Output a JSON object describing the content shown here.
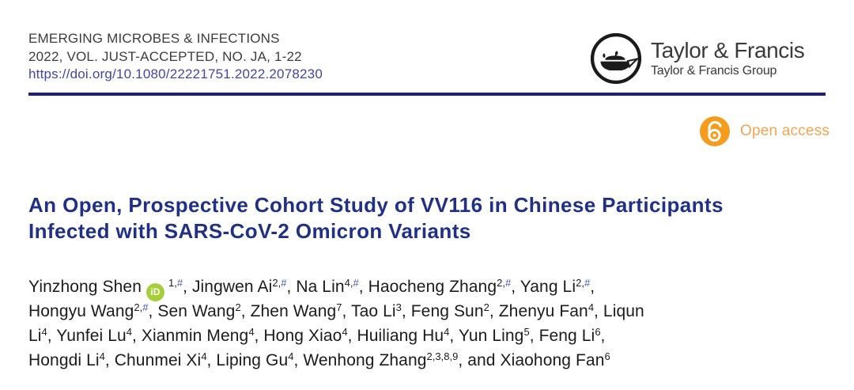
{
  "journal": {
    "name": "EMERGING MICROBES & INFECTIONS",
    "issue_line": "2022, VOL. JUST-ACCEPTED, NO. JA, 1-22",
    "doi": "https://doi.org/10.1080/22221751.2022.2078230"
  },
  "publisher": {
    "name": "Taylor & Francis",
    "group": "Taylor & Francis Group"
  },
  "badges": {
    "open_access_label": "Open access"
  },
  "article": {
    "title_lines": [
      "An Open, Prospective Cohort Study of VV116 in Chinese Participants",
      "Infected with SARS-CoV-2 Omicron Variants"
    ]
  },
  "icons": {
    "orcid_label": "iD"
  },
  "colors": {
    "title": "#203087",
    "rule": "#1c2180",
    "doi_link": "#4245a8",
    "open_access": "#f59c1c",
    "open_access_text": "#f7a34f",
    "orcid_green": "#a6ce39",
    "hash_link": "#4456b0"
  },
  "authors": {
    "lines": [
      [
        {
          "n": "Yinzhong Shen",
          "o": true,
          "s": [
            "1",
            "#"
          ],
          "sep": ", "
        },
        {
          "n": "Jingwen Ai",
          "s": [
            "2",
            "#"
          ],
          "sep": ", "
        },
        {
          "n": "Na Lin",
          "s": [
            "4",
            "#"
          ],
          "sep": ", "
        },
        {
          "n": "Haocheng Zhang",
          "s": [
            "2",
            "#"
          ],
          "sep": ", "
        },
        {
          "n": "Yang Li",
          "s": [
            "2",
            "#"
          ],
          "sep": ","
        }
      ],
      [
        {
          "n": "Hongyu Wang",
          "s": [
            "2",
            "#"
          ],
          "sep": ", "
        },
        {
          "n": "Sen Wang",
          "s": [
            "2"
          ],
          "sep": ", "
        },
        {
          "n": "Zhen Wang",
          "s": [
            "7"
          ],
          "sep": ", "
        },
        {
          "n": "Tao Li",
          "s": [
            "3"
          ],
          "sep": ", "
        },
        {
          "n": "Feng Sun",
          "s": [
            "2"
          ],
          "sep": ", "
        },
        {
          "n": "Zhenyu Fan",
          "s": [
            "4"
          ],
          "sep": ", "
        },
        {
          "n": "Liqun",
          "s": [],
          "sep": ""
        }
      ],
      [
        {
          "n": "Li",
          "s": [
            "4"
          ],
          "sep": ", "
        },
        {
          "n": "Yunfei Lu",
          "s": [
            "4"
          ],
          "sep": ", "
        },
        {
          "n": "Xianmin Meng",
          "s": [
            "4"
          ],
          "sep": ", "
        },
        {
          "n": "Hong Xiao",
          "s": [
            "4"
          ],
          "sep": ", "
        },
        {
          "n": "Huiliang Hu",
          "s": [
            "4"
          ],
          "sep": ", "
        },
        {
          "n": "Yun Ling",
          "s": [
            "5"
          ],
          "sep": ", "
        },
        {
          "n": "Feng Li",
          "s": [
            "6"
          ],
          "sep": ","
        }
      ],
      [
        {
          "n": "Hongdi Li",
          "s": [
            "4"
          ],
          "sep": ", "
        },
        {
          "n": "Chunmei Xi",
          "s": [
            "4"
          ],
          "sep": ", "
        },
        {
          "n": "Liping Gu",
          "s": [
            "4"
          ],
          "sep": ", "
        },
        {
          "n": "Wenhong Zhang",
          "s": [
            "2",
            "3",
            "8",
            "9"
          ],
          "sep": ", and "
        },
        {
          "n": "Xiaohong Fan",
          "s": [
            "6"
          ],
          "sep": ""
        }
      ]
    ]
  }
}
